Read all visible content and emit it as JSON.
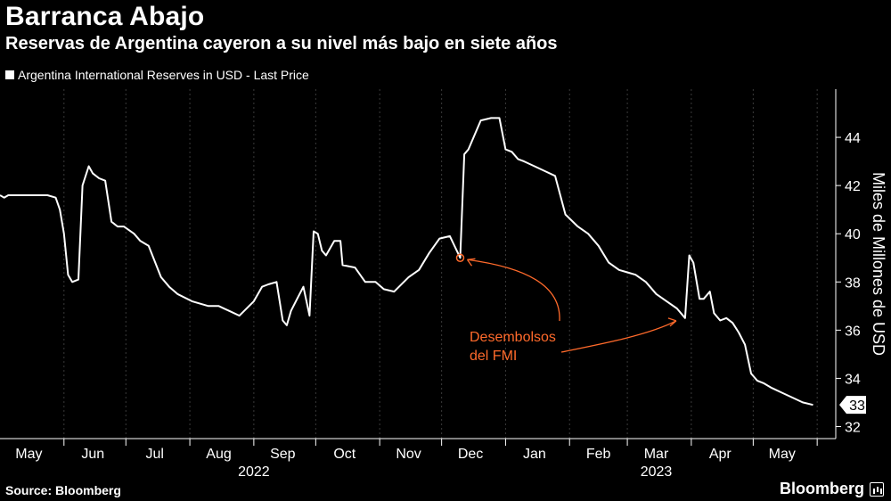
{
  "header": {
    "title": "Barranca Abajo",
    "subtitle": "Reservas de Argentina cayeron a su nivel más bajo en siete años"
  },
  "legend": {
    "label": "Argentina International Reserves in USD - Last Price"
  },
  "footer": {
    "source": "Source: Bloomberg",
    "brand": "Bloomberg"
  },
  "colors": {
    "background": "#000000",
    "line": "#ffffff",
    "annotation": "#ff6a2b",
    "grid": "#3a3a3a"
  },
  "chart_data": {
    "type": "line",
    "title": "Barranca Abajo",
    "subtitle": "Reservas de Argentina cayeron a su nivel más bajo en siete años",
    "ylabel": "Miles de Millones de USD",
    "xlabel": "",
    "ylim": [
      31.5,
      46
    ],
    "y_ticks": [
      32,
      34,
      36,
      38,
      40,
      42,
      44
    ],
    "y_axis_side": "right",
    "grid": "vertical dashed at month boundaries",
    "x_range": [
      "2022-05-01",
      "2023-06-10"
    ],
    "x_tick_labels": [
      {
        "label": "May",
        "date": "2022-05-15"
      },
      {
        "label": "Jun",
        "date": "2022-06-15"
      },
      {
        "label": "Jul",
        "date": "2022-07-15"
      },
      {
        "label": "Aug",
        "date": "2022-08-15"
      },
      {
        "label": "Sep",
        "date": "2022-09-15"
      },
      {
        "label": "Oct",
        "date": "2022-10-15"
      },
      {
        "label": "Nov",
        "date": "2022-11-15"
      },
      {
        "label": "Dec",
        "date": "2022-12-15"
      },
      {
        "label": "Jan",
        "date": "2023-01-15"
      },
      {
        "label": "Feb",
        "date": "2023-02-15"
      },
      {
        "label": "Mar",
        "date": "2023-03-15"
      },
      {
        "label": "Apr",
        "date": "2023-04-15"
      },
      {
        "label": "May",
        "date": "2023-05-15"
      }
    ],
    "x_gridlines": [
      "2022-06-01",
      "2022-07-01",
      "2022-08-01",
      "2022-09-01",
      "2022-10-01",
      "2022-11-01",
      "2022-12-01",
      "2023-01-01",
      "2023-02-01",
      "2023-03-01",
      "2023-04-01",
      "2023-05-01",
      "2023-06-01"
    ],
    "year_labels": [
      {
        "label": "2022",
        "date": "2022-09-01"
      },
      {
        "label": "2023",
        "date": "2023-03-15"
      }
    ],
    "series": [
      {
        "name": "Argentina International Reserves in USD - Last Price",
        "x": [
          "2022-05-01",
          "2022-05-03",
          "2022-05-05",
          "2022-05-10",
          "2022-05-17",
          "2022-05-24",
          "2022-05-28",
          "2022-05-30",
          "2022-06-01",
          "2022-06-03",
          "2022-06-05",
          "2022-06-08",
          "2022-06-10",
          "2022-06-13",
          "2022-06-15",
          "2022-06-18",
          "2022-06-21",
          "2022-06-24",
          "2022-06-27",
          "2022-06-30",
          "2022-07-05",
          "2022-07-08",
          "2022-07-12",
          "2022-07-18",
          "2022-07-22",
          "2022-07-26",
          "2022-08-02",
          "2022-08-10",
          "2022-08-15",
          "2022-08-20",
          "2022-08-25",
          "2022-09-01",
          "2022-09-05",
          "2022-09-08",
          "2022-09-12",
          "2022-09-15",
          "2022-09-17",
          "2022-09-19",
          "2022-09-22",
          "2022-09-25",
          "2022-09-28",
          "2022-09-30",
          "2022-10-02",
          "2022-10-04",
          "2022-10-06",
          "2022-10-10",
          "2022-10-13",
          "2022-10-14",
          "2022-10-20",
          "2022-10-25",
          "2022-10-30",
          "2022-11-03",
          "2022-11-08",
          "2022-11-15",
          "2022-11-20",
          "2022-11-25",
          "2022-11-30",
          "2022-12-05",
          "2022-12-10",
          "2022-12-12",
          "2022-12-13",
          "2022-12-14",
          "2022-12-20",
          "2022-12-25",
          "2022-12-29",
          "2023-01-01",
          "2023-01-04",
          "2023-01-07",
          "2023-01-10",
          "2023-01-15",
          "2023-01-20",
          "2023-01-25",
          "2023-01-30",
          "2023-02-05",
          "2023-02-10",
          "2023-02-15",
          "2023-02-20",
          "2023-02-25",
          "2023-03-01",
          "2023-03-05",
          "2023-03-10",
          "2023-03-15",
          "2023-03-20",
          "2023-03-25",
          "2023-03-29",
          "2023-03-31",
          "2023-04-02",
          "2023-04-05",
          "2023-04-07",
          "2023-04-10",
          "2023-04-12",
          "2023-04-15",
          "2023-04-18",
          "2023-04-21",
          "2023-04-24",
          "2023-04-27",
          "2023-04-30",
          "2023-05-03",
          "2023-05-06",
          "2023-05-10",
          "2023-05-15",
          "2023-05-20",
          "2023-05-25",
          "2023-05-30"
        ],
        "y": [
          41.6,
          41.5,
          41.6,
          41.6,
          41.6,
          41.6,
          41.5,
          41.0,
          40.0,
          38.3,
          38.0,
          38.1,
          42.0,
          42.8,
          42.5,
          42.3,
          42.2,
          40.5,
          40.3,
          40.3,
          40.0,
          39.7,
          39.5,
          38.2,
          37.8,
          37.5,
          37.2,
          37.0,
          37.0,
          36.8,
          36.6,
          37.2,
          37.8,
          37.9,
          38.0,
          36.4,
          36.2,
          36.8,
          37.3,
          37.8,
          36.6,
          40.1,
          40.0,
          39.3,
          39.1,
          39.7,
          39.7,
          38.7,
          38.6,
          38.0,
          38.0,
          37.7,
          37.6,
          38.2,
          38.5,
          39.2,
          39.8,
          39.9,
          39.0,
          43.3,
          43.4,
          43.5,
          44.7,
          44.8,
          44.8,
          43.5,
          43.4,
          43.1,
          43.0,
          42.8,
          42.6,
          42.4,
          40.8,
          40.3,
          40.0,
          39.5,
          38.8,
          38.5,
          38.4,
          38.3,
          38.0,
          37.5,
          37.2,
          36.9,
          36.5,
          39.1,
          38.8,
          37.3,
          37.3,
          37.6,
          36.7,
          36.4,
          36.5,
          36.3,
          35.9,
          35.4,
          34.2,
          33.9,
          33.8,
          33.6,
          33.4,
          33.2,
          33.0,
          32.9
        ]
      }
    ],
    "last_value_label": "33",
    "annotations": [
      {
        "text_lines": [
          "Desembolsos",
          "del FMI"
        ],
        "points": [
          {
            "date": "2022-12-10",
            "value": 39.0
          },
          {
            "date": "2023-03-29",
            "value": 36.5
          }
        ]
      }
    ]
  }
}
